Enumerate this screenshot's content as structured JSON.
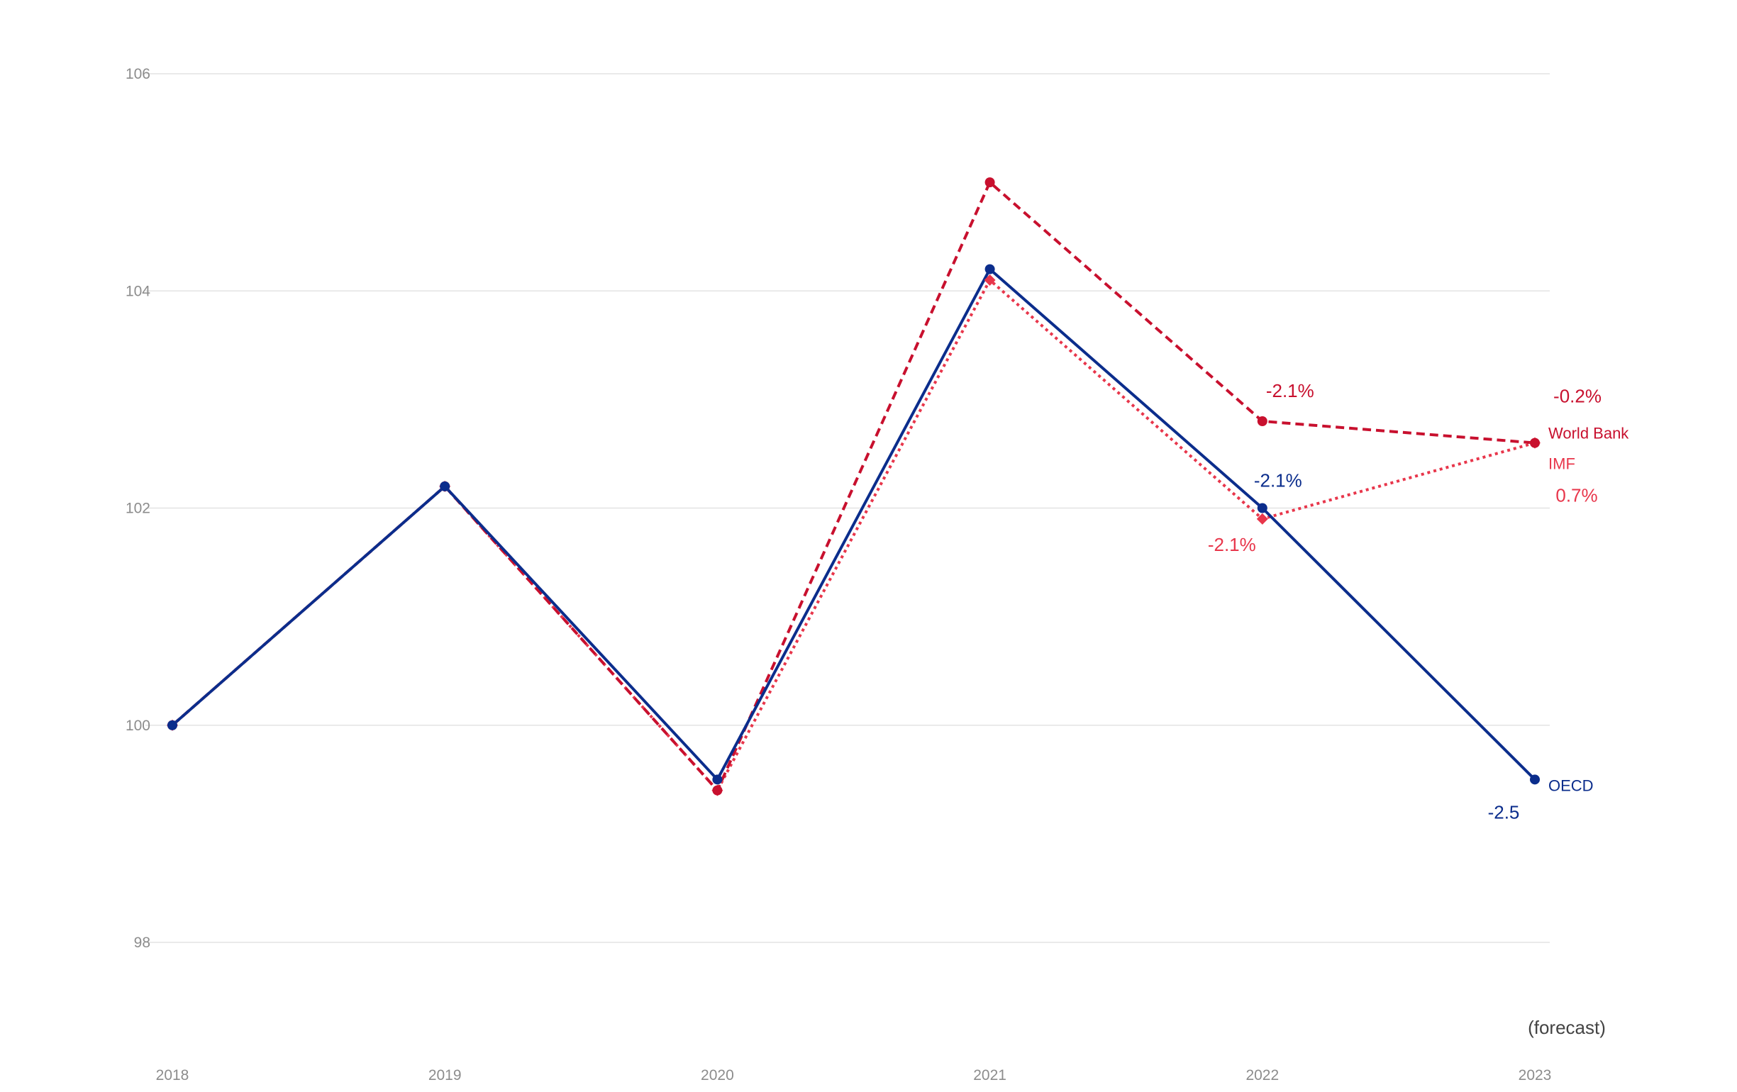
{
  "chart_data": {
    "type": "line",
    "title": "",
    "xlabel": "",
    "ylabel": "",
    "x": [
      "2018",
      "2019",
      "2020",
      "2021",
      "2022",
      "2023"
    ],
    "ylim": [
      97.2,
      106.6
    ],
    "yticks": [
      98,
      100,
      102,
      104,
      106
    ],
    "grid": true,
    "legend": "direct labels at line ends",
    "forecast_note": "(forecast)",
    "series": [
      {
        "name": "World Bank",
        "color": "#c8102e",
        "style": "dashed",
        "marker": "circle",
        "values": [
          100,
          102.2,
          99.4,
          105.0,
          102.8,
          102.6
        ],
        "annotations": [
          {
            "index": 4,
            "text": "-2.1%"
          },
          {
            "index": 5,
            "text": "-0.2%"
          }
        ]
      },
      {
        "name": "IMF",
        "color": "#e8364b",
        "style": "dotted",
        "marker": "diamond",
        "values": [
          100,
          102.2,
          99.4,
          104.1,
          101.9,
          102.6
        ],
        "annotations": [
          {
            "index": 4,
            "text": "-2.1%"
          },
          {
            "index": 5,
            "text": "0.7%"
          }
        ]
      },
      {
        "name": "OECD",
        "color": "#0b2d8c",
        "style": "solid",
        "marker": "circle",
        "values": [
          100,
          102.2,
          99.5,
          104.2,
          102.0,
          99.5
        ],
        "annotations": [
          {
            "index": 4,
            "text": "-2.1%"
          },
          {
            "index": 5,
            "text": "-2.5"
          }
        ]
      }
    ]
  }
}
